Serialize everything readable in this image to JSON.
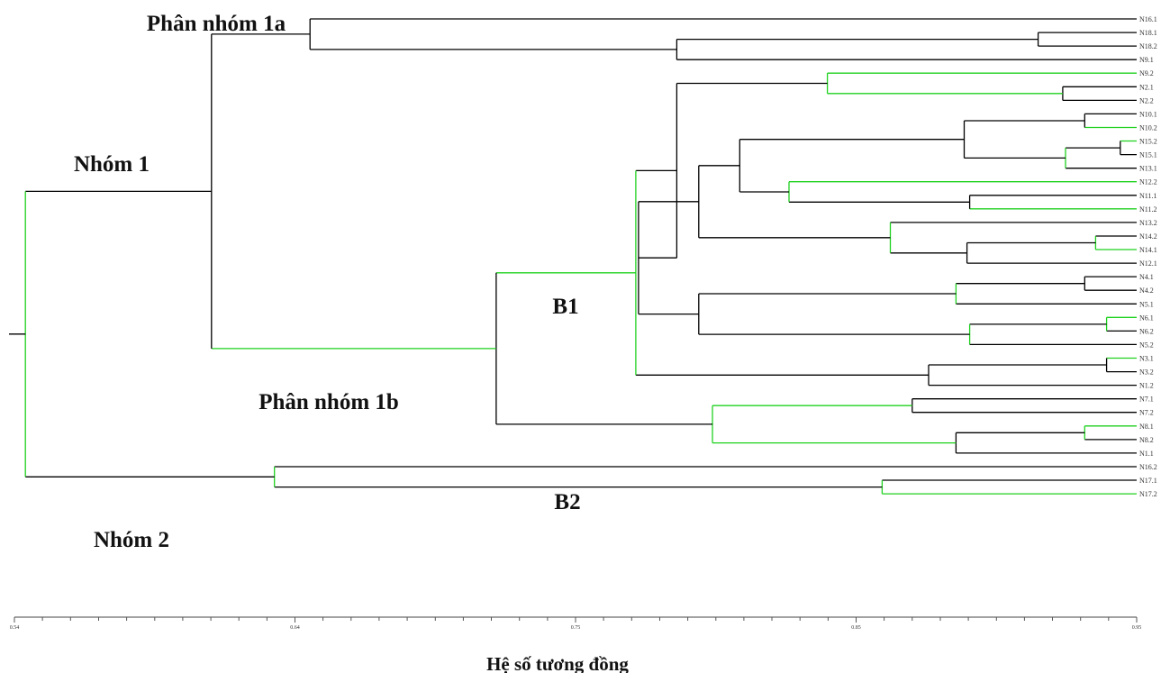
{
  "chart_data": {
    "type": "dendrogram",
    "xlabel": "Hệ số tương đồng",
    "ticks": [
      "0.54",
      "0.64",
      "0.75",
      "0.85",
      "0.95"
    ],
    "xlim": [
      0.54,
      0.95
    ],
    "group_labels": {
      "nhom1": "Nhóm 1",
      "nhom2": "Nhóm 2",
      "phan_nhom_1a": "Phân nhóm 1a",
      "phan_nhom_1b": "Phân nhóm 1b",
      "b1": "B1",
      "b2": "B2"
    },
    "leaves": [
      "N16.1",
      "N18.1",
      "N18.2",
      "N9.1",
      "N9.2",
      "N2.1",
      "N2.2",
      "N10.1",
      "N10.2",
      "N15.2",
      "N15.1",
      "N13.1",
      "N12.2",
      "N11.1",
      "N11.2",
      "N13.2",
      "N14.2",
      "N14.1",
      "N12.1",
      "N4.1",
      "N4.2",
      "N5.1",
      "N6.1",
      "N6.2",
      "N5.2",
      "N3.1",
      "N3.2",
      "N1.2",
      "N7.1",
      "N7.2",
      "N8.1",
      "N8.2",
      "N1.1",
      "N16.2",
      "N17.1",
      "N17.2"
    ],
    "merges": [
      {
        "id": "a1",
        "children": [
          "N18.1",
          "N18.2"
        ],
        "similarity": 0.914
      },
      {
        "id": "a2",
        "children": [
          "a1",
          "N9.1"
        ],
        "similarity": 0.782
      },
      {
        "id": "a3",
        "children": [
          "N16.1",
          "a2"
        ],
        "similarity": 0.648
      },
      {
        "id": "b1",
        "children": [
          "N2.1",
          "N2.2"
        ],
        "similarity": 0.923
      },
      {
        "id": "b2",
        "children": [
          "N9.2",
          "b1"
        ],
        "similarity": 0.837
      },
      {
        "id": "c1",
        "children": [
          "N10.1",
          "N10.2"
        ],
        "similarity": 0.931
      },
      {
        "id": "c2",
        "children": [
          "N15.2",
          "N15.1"
        ],
        "similarity": 0.944
      },
      {
        "id": "c3",
        "children": [
          "c2",
          "N13.1"
        ],
        "similarity": 0.924
      },
      {
        "id": "c4",
        "children": [
          "c1",
          "c3"
        ],
        "similarity": 0.887
      },
      {
        "id": "c5",
        "children": [
          "N11.1",
          "N11.2"
        ],
        "similarity": 0.889
      },
      {
        "id": "c6",
        "children": [
          "N12.2",
          "c5"
        ],
        "similarity": 0.823
      },
      {
        "id": "c7",
        "children": [
          "c4",
          "c6"
        ],
        "similarity": 0.805
      },
      {
        "id": "d1",
        "children": [
          "N14.2",
          "N14.1"
        ],
        "similarity": 0.935
      },
      {
        "id": "d2",
        "children": [
          "d1",
          "N12.1"
        ],
        "similarity": 0.888
      },
      {
        "id": "d3",
        "children": [
          "N13.2",
          "d2"
        ],
        "similarity": 0.86
      },
      {
        "id": "d4",
        "children": [
          "c7",
          "d3"
        ],
        "similarity": 0.79
      },
      {
        "id": "e1",
        "children": [
          "N4.1",
          "N4.2"
        ],
        "similarity": 0.931
      },
      {
        "id": "e2",
        "children": [
          "e1",
          "N5.1"
        ],
        "similarity": 0.884
      },
      {
        "id": "e3",
        "children": [
          "N6.1",
          "N6.2"
        ],
        "similarity": 0.939
      },
      {
        "id": "e4",
        "children": [
          "e3",
          "N5.2"
        ],
        "similarity": 0.889
      },
      {
        "id": "e5",
        "children": [
          "e2",
          "e4"
        ],
        "similarity": 0.79
      },
      {
        "id": "f1",
        "children": [
          "d4",
          "e5"
        ],
        "similarity": 0.768
      },
      {
        "id": "f2",
        "children": [
          "b2",
          "f1"
        ],
        "similarity": 0.782
      },
      {
        "id": "g1",
        "children": [
          "N3.1",
          "N3.2"
        ],
        "similarity": 0.939
      },
      {
        "id": "g2",
        "children": [
          "g1",
          "N1.2"
        ],
        "similarity": 0.874
      },
      {
        "id": "g3",
        "children": [
          "f2",
          "g2"
        ],
        "similarity": 0.767
      },
      {
        "id": "h1",
        "children": [
          "N7.1",
          "N7.2"
        ],
        "similarity": 0.868
      },
      {
        "id": "h2",
        "children": [
          "N8.1",
          "N8.2"
        ],
        "similarity": 0.931
      },
      {
        "id": "h3",
        "children": [
          "h2",
          "N1.1"
        ],
        "similarity": 0.884
      },
      {
        "id": "h4",
        "children": [
          "h1",
          "h3"
        ],
        "similarity": 0.795
      },
      {
        "id": "i1",
        "children": [
          "g3",
          "h4"
        ],
        "similarity": 0.716
      },
      {
        "id": "j1",
        "children": [
          "a3",
          "i1"
        ],
        "similarity": 0.612
      },
      {
        "id": "k1",
        "children": [
          "N17.1",
          "N17.2"
        ],
        "similarity": 0.857
      },
      {
        "id": "k2",
        "children": [
          "N16.2",
          "k1"
        ],
        "similarity": 0.635
      },
      {
        "id": "root",
        "children": [
          "j1",
          "k2"
        ],
        "similarity": 0.544
      }
    ],
    "colors": {
      "branch": "#000000",
      "highlight": "#1fd11f"
    }
  }
}
